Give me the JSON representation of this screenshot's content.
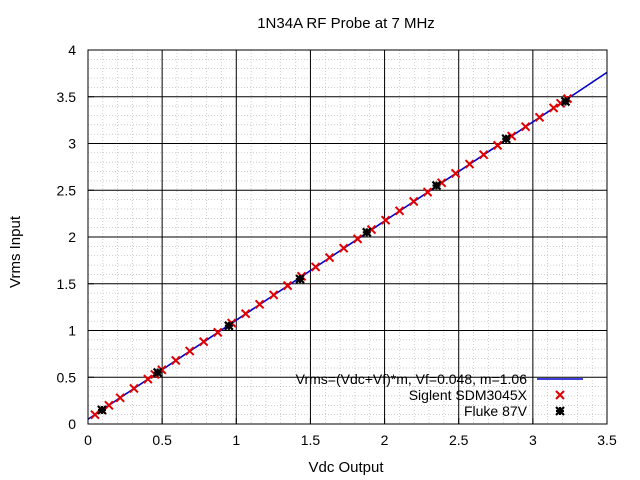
{
  "chart_data": {
    "type": "scatter",
    "title": "1N34A RF Probe at 7 MHz",
    "xlabel": "Vdc Output",
    "ylabel": "Vrms Input",
    "xlim": [
      0,
      3.5
    ],
    "ylim": [
      0,
      4
    ],
    "x_ticks": [
      "0",
      "0.5",
      "1",
      "1.5",
      "2",
      "2.5",
      "3",
      "3.5"
    ],
    "y_ticks": [
      "0",
      "0.5",
      "1",
      "1.5",
      "2",
      "2.5",
      "3",
      "3.5",
      "4"
    ],
    "grid": true,
    "minor_grid": true,
    "legend_position": "bottom-right",
    "fit": {
      "label": "Vrms=(Vdc+Vf)*m, Vf=0.048, m=1.06",
      "vf": 0.048,
      "m": 1.06,
      "color": "#0000cc"
    },
    "series": [
      {
        "name": "Siglent SDM3045X",
        "marker": "x",
        "color": "#e00000",
        "x": [
          0.047,
          0.094,
          0.141,
          0.217,
          0.31,
          0.404,
          0.451,
          0.498,
          0.592,
          0.686,
          0.78,
          0.875,
          0.969,
          1.063,
          1.157,
          1.252,
          1.346,
          1.44,
          1.535,
          1.629,
          1.724,
          1.818,
          1.912,
          2.007,
          2.101,
          2.196,
          2.29,
          2.385,
          2.479,
          2.573,
          2.668,
          2.762,
          2.857,
          2.951,
          3.045,
          3.14,
          3.187,
          3.234
        ],
        "y": [
          0.1,
          0.15,
          0.2,
          0.28,
          0.38,
          0.48,
          0.53,
          0.58,
          0.68,
          0.78,
          0.88,
          0.98,
          1.08,
          1.18,
          1.28,
          1.38,
          1.48,
          1.58,
          1.68,
          1.78,
          1.88,
          1.98,
          2.08,
          2.18,
          2.28,
          2.38,
          2.48,
          2.58,
          2.68,
          2.78,
          2.88,
          2.98,
          3.08,
          3.18,
          3.28,
          3.38,
          3.43,
          3.48
        ]
      },
      {
        "name": "Fluke 87V",
        "marker": "asterisk",
        "color": "#000000",
        "x": [
          0.094,
          0.47,
          0.95,
          1.43,
          1.88,
          2.35,
          2.82,
          3.22
        ],
        "y": [
          0.15,
          0.55,
          1.05,
          1.55,
          2.05,
          2.55,
          3.05,
          3.45
        ]
      }
    ]
  }
}
